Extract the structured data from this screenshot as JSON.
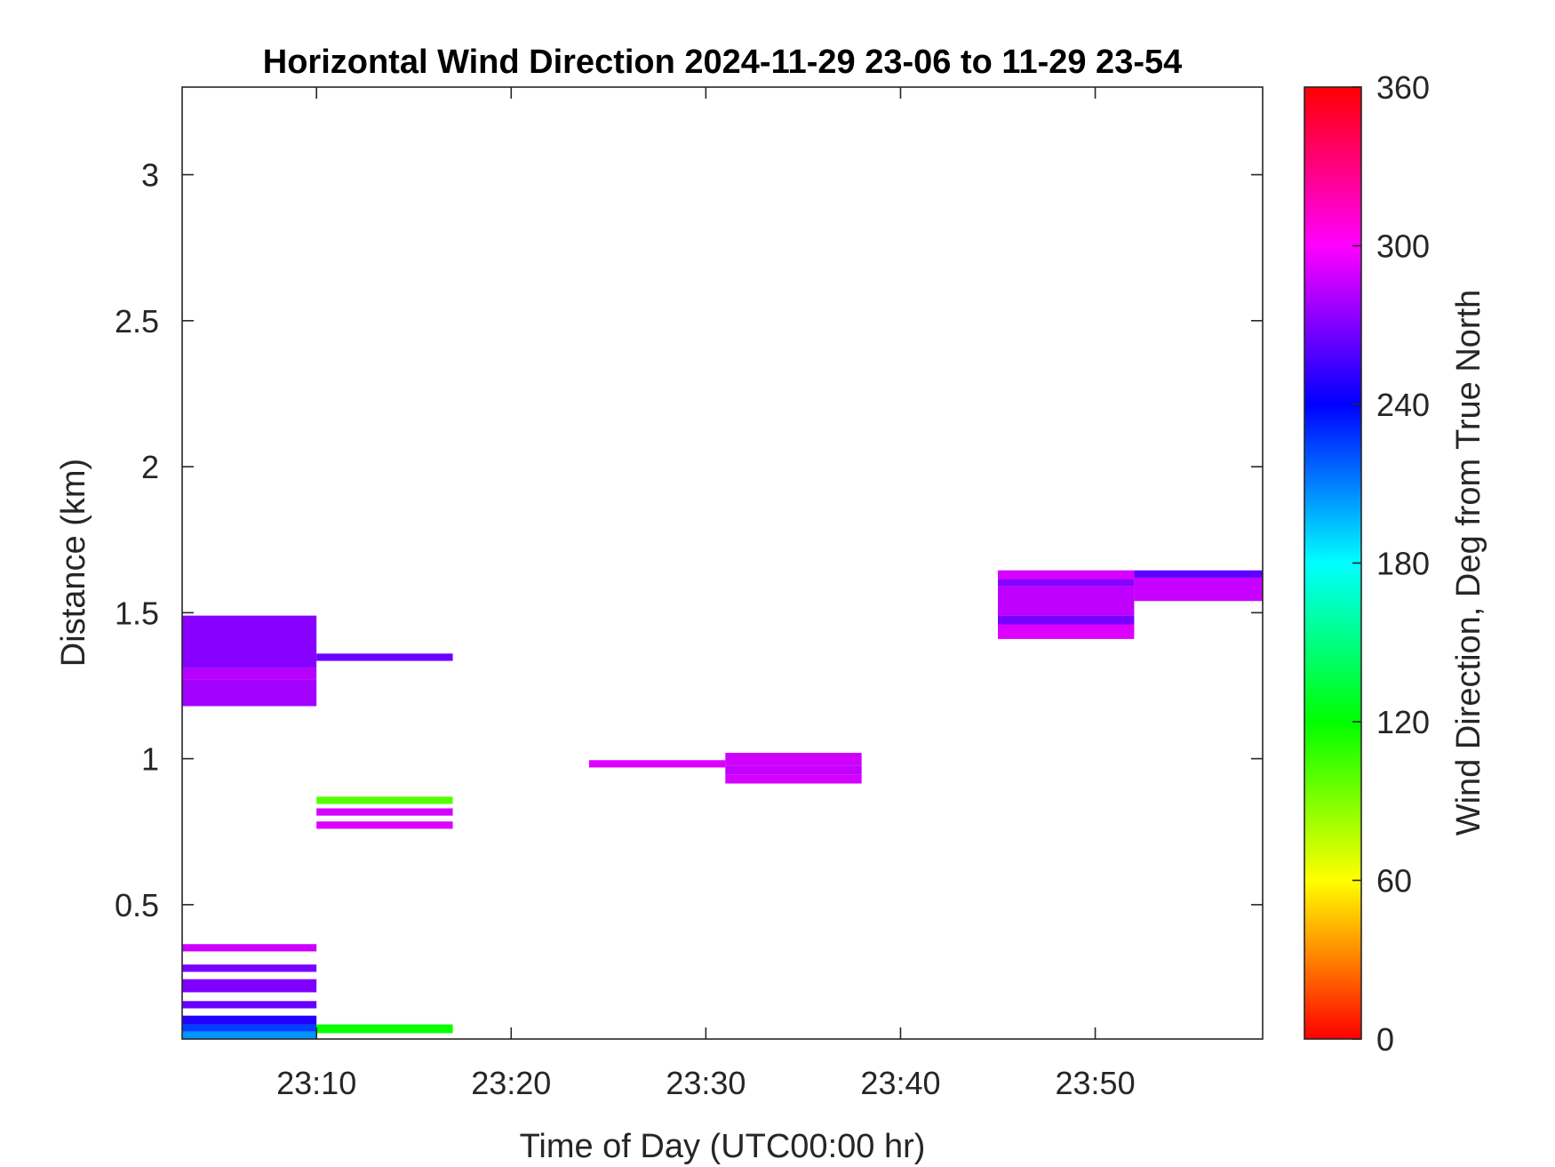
{
  "chart_data": {
    "type": "heatmap",
    "title": "Horizontal Wind Direction 2024-11-29 23-06 to 11-29 23-54",
    "xlabel": "Time of Day (UTC00:00 hr)",
    "ylabel": "Distance (km)",
    "colorbar_label": "Wind Direction, Deg from True North",
    "x_ticks": [
      "23:10",
      "23:20",
      "23:30",
      "23:40",
      "23:50"
    ],
    "x_tick_minutes": [
      10,
      20,
      30,
      40,
      50
    ],
    "xlim_minutes": [
      3.1,
      58.6
    ],
    "y_ticks": [
      "0.5",
      "1",
      "1.5",
      "2",
      "2.5",
      "3"
    ],
    "y_tick_values": [
      0.5,
      1,
      1.5,
      2,
      2.5,
      3
    ],
    "ylim": [
      0.04,
      3.3
    ],
    "colorbar_ticks": [
      "0",
      "60",
      "120",
      "180",
      "240",
      "300",
      "360"
    ],
    "colorbar_tick_values": [
      0,
      60,
      120,
      180,
      240,
      300,
      360
    ],
    "clim": [
      0,
      360
    ],
    "colormap": [
      "#ff0000",
      "#ffff00",
      "#00ff00",
      "#00ffff",
      "#0000ff",
      "#ff00ff",
      "#ff0000"
    ],
    "cells": [
      {
        "t0": 3.1,
        "t1": 10.0,
        "d0": 1.18,
        "d1": 1.27,
        "deg": 278
      },
      {
        "t0": 3.1,
        "t1": 10.0,
        "d0": 1.27,
        "d1": 1.31,
        "deg": 283
      },
      {
        "t0": 3.1,
        "t1": 10.0,
        "d0": 1.31,
        "d1": 1.49,
        "deg": 272
      },
      {
        "t0": 10.0,
        "t1": 17.0,
        "d0": 1.335,
        "d1": 1.36,
        "deg": 265
      },
      {
        "t0": 3.1,
        "t1": 10.0,
        "d0": 0.34,
        "d1": 0.365,
        "deg": 288
      },
      {
        "t0": 3.1,
        "t1": 10.0,
        "d0": 0.27,
        "d1": 0.295,
        "deg": 268
      },
      {
        "t0": 3.1,
        "t1": 10.0,
        "d0": 0.2,
        "d1": 0.245,
        "deg": 270
      },
      {
        "t0": 3.1,
        "t1": 10.0,
        "d0": 0.145,
        "d1": 0.17,
        "deg": 264
      },
      {
        "t0": 3.1,
        "t1": 10.0,
        "d0": 0.09,
        "d1": 0.12,
        "deg": 248
      },
      {
        "t0": 3.1,
        "t1": 10.0,
        "d0": 0.065,
        "d1": 0.09,
        "deg": 225
      },
      {
        "t0": 3.1,
        "t1": 10.0,
        "d0": 0.04,
        "d1": 0.065,
        "deg": 205
      },
      {
        "t0": 10.0,
        "t1": 17.0,
        "d0": 0.845,
        "d1": 0.87,
        "deg": 100
      },
      {
        "t0": 10.0,
        "t1": 17.0,
        "d0": 0.805,
        "d1": 0.83,
        "deg": 290
      },
      {
        "t0": 10.0,
        "t1": 17.0,
        "d0": 0.76,
        "d1": 0.785,
        "deg": 292
      },
      {
        "t0": 10.0,
        "t1": 17.0,
        "d0": 0.06,
        "d1": 0.09,
        "deg": 118
      },
      {
        "t0": 24.0,
        "t1": 31.0,
        "d0": 0.97,
        "d1": 0.995,
        "deg": 292
      },
      {
        "t0": 31.0,
        "t1": 38.0,
        "d0": 0.915,
        "d1": 0.945,
        "deg": 290
      },
      {
        "t0": 31.0,
        "t1": 38.0,
        "d0": 0.945,
        "d1": 0.975,
        "deg": 286
      },
      {
        "t0": 31.0,
        "t1": 38.0,
        "d0": 0.975,
        "d1": 1.02,
        "deg": 289
      },
      {
        "t0": 45.0,
        "t1": 52.0,
        "d0": 1.41,
        "d1": 1.46,
        "deg": 292
      },
      {
        "t0": 45.0,
        "t1": 52.0,
        "d0": 1.46,
        "d1": 1.49,
        "deg": 268
      },
      {
        "t0": 45.0,
        "t1": 52.0,
        "d0": 1.49,
        "d1": 1.59,
        "deg": 285
      },
      {
        "t0": 45.0,
        "t1": 52.0,
        "d0": 1.59,
        "d1": 1.615,
        "deg": 272
      },
      {
        "t0": 45.0,
        "t1": 52.0,
        "d0": 1.615,
        "d1": 1.645,
        "deg": 290
      },
      {
        "t0": 52.0,
        "t1": 58.6,
        "d0": 1.54,
        "d1": 1.62,
        "deg": 287
      },
      {
        "t0": 52.0,
        "t1": 58.6,
        "d0": 1.62,
        "d1": 1.645,
        "deg": 262
      }
    ]
  }
}
